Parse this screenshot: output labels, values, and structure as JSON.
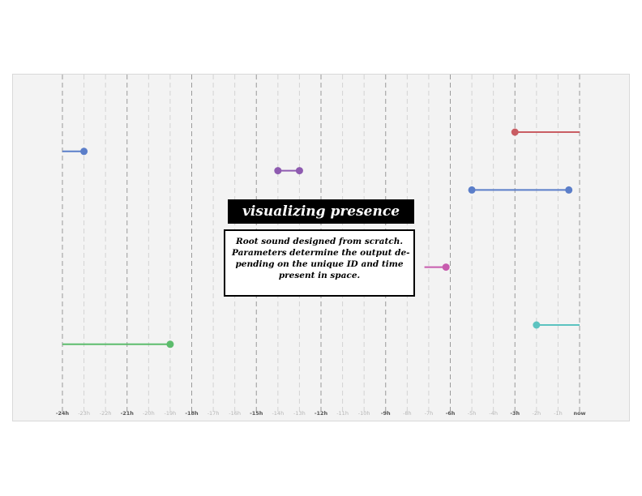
{
  "title": "visualizing presence",
  "description_lines": [
    "Root sound designed from scratch.",
    "Parameters determine the output de-",
    "pending on the unique ID and time",
    "present in space."
  ],
  "chart_data": {
    "type": "timeline",
    "x_unit": "hours relative to now",
    "x_range": [
      -24,
      0
    ],
    "ticks": [
      {
        "value": -24,
        "label": "-24h",
        "major": true
      },
      {
        "value": -23,
        "label": "-23h",
        "major": false
      },
      {
        "value": -22,
        "label": "-22h",
        "major": false
      },
      {
        "value": -21,
        "label": "-21h",
        "major": true
      },
      {
        "value": -20,
        "label": "-20h",
        "major": false
      },
      {
        "value": -19,
        "label": "-19h",
        "major": false
      },
      {
        "value": -18,
        "label": "-18h",
        "major": true
      },
      {
        "value": -17,
        "label": "-17h",
        "major": false
      },
      {
        "value": -16,
        "label": "-16h",
        "major": false
      },
      {
        "value": -15,
        "label": "-15h",
        "major": true
      },
      {
        "value": -14,
        "label": "-14h",
        "major": false
      },
      {
        "value": -13,
        "label": "-13h",
        "major": false
      },
      {
        "value": -12,
        "label": "-12h",
        "major": true
      },
      {
        "value": -11,
        "label": "-11h",
        "major": false
      },
      {
        "value": -10,
        "label": "-10h",
        "major": false
      },
      {
        "value": -9,
        "label": "-9h",
        "major": true
      },
      {
        "value": -8,
        "label": "-8h",
        "major": false
      },
      {
        "value": -7,
        "label": "-7h",
        "major": false
      },
      {
        "value": -6,
        "label": "-6h",
        "major": true
      },
      {
        "value": -5,
        "label": "-5h",
        "major": false
      },
      {
        "value": -4,
        "label": "-4h",
        "major": false
      },
      {
        "value": -3,
        "label": "-3h",
        "major": true
      },
      {
        "value": -2,
        "label": "-2h",
        "major": false
      },
      {
        "value": -1,
        "label": "-1h",
        "major": false
      },
      {
        "value": 0,
        "label": "now",
        "major": true
      }
    ],
    "rows": 14,
    "segments": [
      {
        "row": 1,
        "start": -3.0,
        "end": 0.0,
        "start_marker": true,
        "end_marker": false,
        "color": "#c95d63"
      },
      {
        "row": 2,
        "start": -24.0,
        "end": -23.0,
        "start_marker": false,
        "end_marker": true,
        "color": "#5b7ec9"
      },
      {
        "row": 3,
        "start": -14.0,
        "end": -13.0,
        "start_marker": true,
        "end_marker": true,
        "color": "#8e5bb0"
      },
      {
        "row": 4,
        "start": -5.0,
        "end": -0.5,
        "start_marker": true,
        "end_marker": true,
        "color": "#5b7ec9"
      },
      {
        "row": 8,
        "start": -7.2,
        "end": -6.2,
        "start_marker": false,
        "end_marker": true,
        "color": "#c75cae"
      },
      {
        "row": 11,
        "start": -2.0,
        "end": 0.0,
        "start_marker": true,
        "end_marker": false,
        "color": "#5cc3c0"
      },
      {
        "row": 12,
        "start": -24.0,
        "end": -19.0,
        "start_marker": false,
        "end_marker": true,
        "color": "#5cbc6c"
      }
    ]
  }
}
